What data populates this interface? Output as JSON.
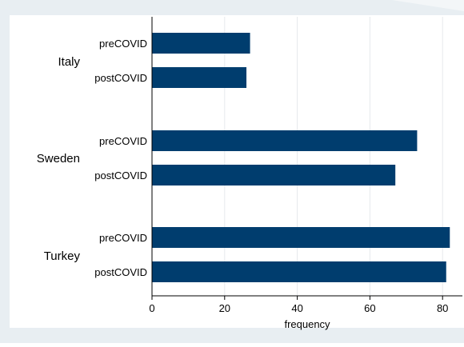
{
  "chart_data": {
    "type": "bar",
    "orientation": "horizontal",
    "groups": [
      {
        "label": "Italy",
        "bars": [
          {
            "label": "preCOVID",
            "value": 27
          },
          {
            "label": "postCOVID",
            "value": 26
          }
        ]
      },
      {
        "label": "Sweden",
        "bars": [
          {
            "label": "preCOVID",
            "value": 73
          },
          {
            "label": "postCOVID",
            "value": 67
          }
        ]
      },
      {
        "label": "Turkey",
        "bars": [
          {
            "label": "preCOVID",
            "value": 82
          },
          {
            "label": "postCOVID",
            "value": 81
          }
        ]
      }
    ],
    "xlabel": "frequency",
    "ylabel": "",
    "xlim": [
      0,
      85
    ],
    "xticks": [
      0,
      20,
      40,
      60,
      80
    ],
    "grid": true,
    "legend": false,
    "colors": {
      "bar": "#003d6e",
      "plot_background": "#ffffff",
      "outer_background": "#e8eef2",
      "gridline": "#e6e9ec",
      "axis": "#000000"
    }
  }
}
